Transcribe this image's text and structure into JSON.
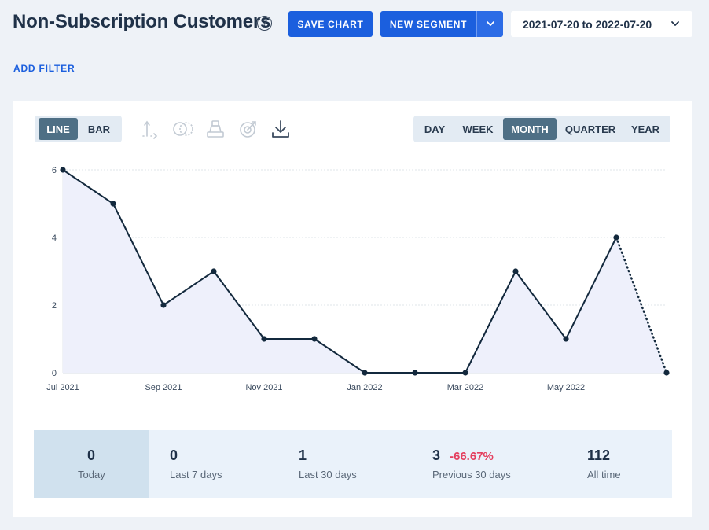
{
  "header": {
    "title": "Non-Subscription Customers",
    "help_glyph": "?",
    "save_chart_label": "SAVE CHART",
    "new_segment_label": "NEW SEGMENT",
    "date_range": "2021-07-20 to 2022-07-20"
  },
  "filters": {
    "add_filter_label": "ADD FILTER"
  },
  "toolbar": {
    "chart_types": [
      {
        "label": "LINE",
        "active": true
      },
      {
        "label": "BAR",
        "active": false
      }
    ],
    "tools": [
      "axis-icon",
      "compare-icon",
      "stack-icon",
      "goal-icon",
      "download-icon"
    ],
    "periods": [
      {
        "label": "DAY",
        "active": false
      },
      {
        "label": "WEEK",
        "active": false
      },
      {
        "label": "MONTH",
        "active": true
      },
      {
        "label": "QUARTER",
        "active": false
      },
      {
        "label": "YEAR",
        "active": false
      }
    ]
  },
  "chart_data": {
    "type": "area",
    "x": [
      "2021-07",
      "2021-08",
      "2021-09",
      "2021-10",
      "2021-11",
      "2021-12",
      "2022-01",
      "2022-02",
      "2022-03",
      "2022-04",
      "2022-05",
      "2022-06",
      "2022-07"
    ],
    "values": [
      6,
      5,
      2,
      3,
      1,
      1,
      0,
      0,
      0,
      3,
      1,
      4,
      0
    ],
    "x_tick_labels": [
      "Jul 2021",
      "Sep 2021",
      "Nov 2021",
      "Jan 2022",
      "Mar 2022",
      "May 2022"
    ],
    "y_ticks": [
      "0",
      "2",
      "4",
      "6"
    ],
    "ylim": [
      0,
      6
    ],
    "grid": true,
    "incomplete_last_period": true,
    "line_color": "#13293d",
    "fill_color": "#eef0fb"
  },
  "stats": {
    "today": {
      "value": "0",
      "label": "Today"
    },
    "last7": {
      "value": "0",
      "label": "Last 7 days"
    },
    "last30": {
      "value": "1",
      "label": "Last 30 days"
    },
    "prev30": {
      "value": "3",
      "change": "-66.67%",
      "label": "Previous 30 days"
    },
    "alltime": {
      "value": "112",
      "label": "All time"
    }
  },
  "colors": {
    "primary": "#1b5fde",
    "active_toggle": "#4e6f85",
    "negative": "#e4405f",
    "background": "#eef2f7"
  }
}
